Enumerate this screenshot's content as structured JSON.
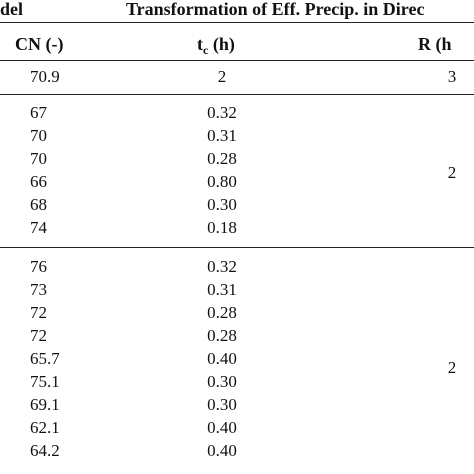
{
  "header": {
    "left_fragment": "del",
    "group_title": "Transformation of Eff. Precip. in Direc",
    "col_cn": "CN (-)",
    "col_tc_main": "t",
    "col_tc_sub": "c",
    "col_tc_unit": " (h)",
    "col_r": "R (h"
  },
  "groups": [
    {
      "rows": [
        {
          "cn": "70.9",
          "tc": "2"
        }
      ],
      "r": "3"
    },
    {
      "rows": [
        {
          "cn": "67",
          "tc": "0.32"
        },
        {
          "cn": "70",
          "tc": "0.31"
        },
        {
          "cn": "70",
          "tc": "0.28"
        },
        {
          "cn": "66",
          "tc": "0.80"
        },
        {
          "cn": "68",
          "tc": "0.30"
        },
        {
          "cn": "74",
          "tc": "0.18"
        }
      ],
      "r": "2"
    },
    {
      "rows": [
        {
          "cn": "76",
          "tc": "0.32"
        },
        {
          "cn": "73",
          "tc": "0.31"
        },
        {
          "cn": "72",
          "tc": "0.28"
        },
        {
          "cn": "72",
          "tc": "0.28"
        },
        {
          "cn": "65.7",
          "tc": "0.40"
        },
        {
          "cn": "75.1",
          "tc": "0.30"
        },
        {
          "cn": "69.1",
          "tc": "0.30"
        },
        {
          "cn": "62.1",
          "tc": "0.40"
        },
        {
          "cn": "64.2",
          "tc": "0.40"
        }
      ],
      "r": "2"
    }
  ]
}
